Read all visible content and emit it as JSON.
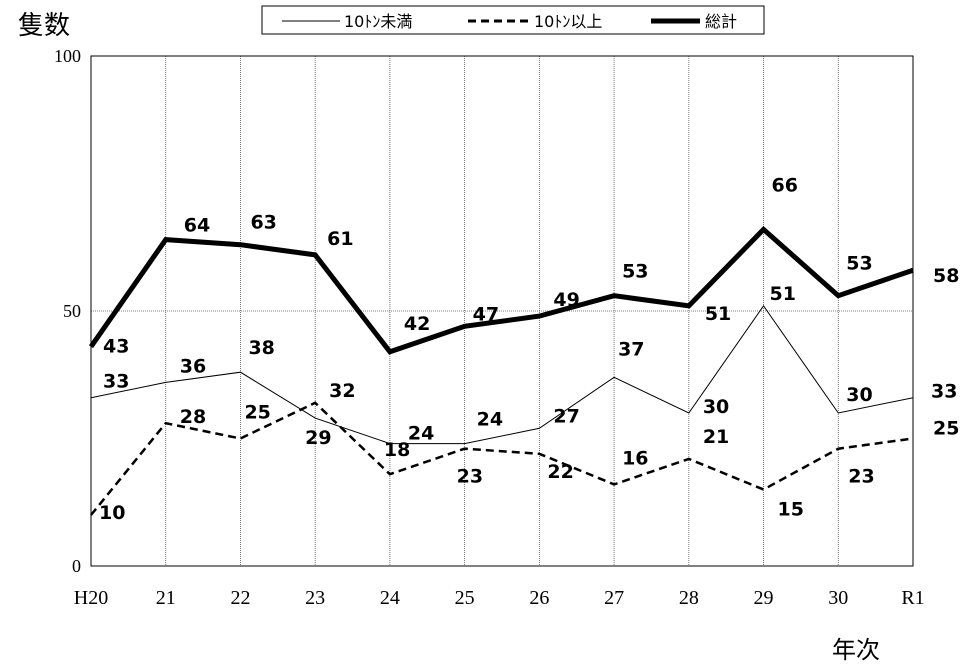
{
  "chart_data": {
    "type": "line",
    "title": "",
    "ylabel": "隻数",
    "xlabel": "年次",
    "categories": [
      "H20",
      "21",
      "22",
      "23",
      "24",
      "25",
      "26",
      "27",
      "28",
      "29",
      "30",
      "R1"
    ],
    "ylim": [
      0,
      100
    ],
    "yticks": [
      "0",
      "50",
      "100"
    ],
    "grid": true,
    "legend_position": "top",
    "series": [
      {
        "name": "10ﾄﾝ未満",
        "style": "thin-solid",
        "color": "#000000",
        "values": [
          33,
          36,
          38,
          29,
          24,
          24,
          27,
          37,
          30,
          51,
          30,
          33
        ]
      },
      {
        "name": "10ﾄﾝ以上",
        "style": "dashed",
        "color": "#000000",
        "values": [
          10,
          28,
          25,
          32,
          18,
          23,
          22,
          16,
          21,
          15,
          23,
          25
        ]
      },
      {
        "name": "総計",
        "style": "thick-solid",
        "color": "#000000",
        "values": [
          43,
          64,
          63,
          61,
          42,
          47,
          49,
          53,
          51,
          66,
          53,
          58
        ]
      }
    ]
  }
}
